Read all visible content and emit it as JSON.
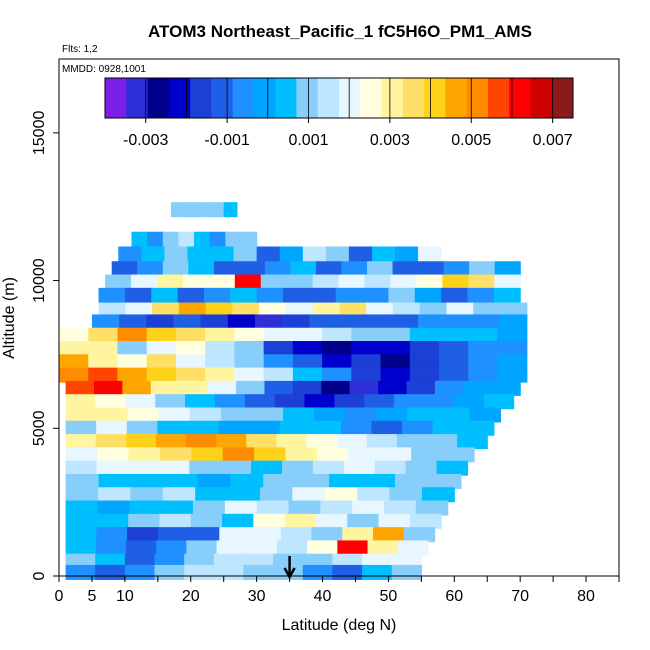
{
  "chart_data": {
    "type": "heatmap",
    "title": "ATOM3 Northeast_Pacific_1 fC5H6O_PM1_AMS",
    "flights_text": "Flts: 1,2",
    "mmdd_text": "MMDD: 0928,1001",
    "xlabel": "Latitude (deg N)",
    "ylabel": "Altitude (m)",
    "xlim": [
      0,
      85
    ],
    "ylim": [
      0,
      17500
    ],
    "x_ticks": [
      0,
      5,
      10,
      20,
      30,
      40,
      50,
      60,
      70,
      80
    ],
    "x_minor_ticks": [
      15,
      25,
      35,
      45,
      55,
      65,
      75,
      85
    ],
    "y_ticks": [
      0,
      5000,
      10000,
      15000
    ],
    "marker_latitude": 35,
    "colorbar": {
      "ticks": [
        "-0.003",
        "-0.001",
        "0.001",
        "0.003",
        "0.005",
        "0.007"
      ],
      "tick_values": [
        -0.003,
        -0.001,
        0.001,
        0.003,
        0.005,
        0.007
      ],
      "range": [
        -0.004,
        0.0075
      ],
      "colors": [
        "#7b1fe6",
        "#2f2fd8",
        "#00008b",
        "#0000cd",
        "#1c3fd6",
        "#1e5fe6",
        "#1e90ff",
        "#00a5ff",
        "#00bfff",
        "#87cefa",
        "#bfe6ff",
        "#e8f6ff",
        "#ffffe0",
        "#fff5a0",
        "#ffe066",
        "#ffd21a",
        "#ffa500",
        "#ff8c00",
        "#ff4500",
        "#ff0000",
        "#cd0000",
        "#8b1a1a"
      ]
    },
    "bands": [
      {
        "alt": 12400,
        "x0": 17,
        "x1": 27,
        "values": [
          0.0008,
          0.0012,
          0.0009,
          0.0011,
          0.0007
        ]
      },
      {
        "alt": 11400,
        "x0": 11,
        "x1": 30,
        "values": [
          0.0002,
          -0.0008,
          0.001,
          0.0015,
          0.0006,
          -0.0005,
          0.0012,
          0.0009
        ]
      },
      {
        "alt": 10900,
        "x0": 9,
        "x1": 58,
        "values": [
          -0.0006,
          0.0003,
          0.0012,
          0.0005,
          0.0004,
          0.0011,
          -0.0009,
          -0.0002,
          0.0013,
          0.0008,
          -0.0011,
          0.0006,
          -0.0003,
          0.002
        ]
      },
      {
        "alt": 10400,
        "x0": 8,
        "x1": 70,
        "values": [
          -0.0012,
          -0.0004,
          0.0009,
          0.0003,
          -0.0009,
          -0.0011,
          -0.0007,
          0.0005,
          -0.0012,
          -0.0006,
          0.0008,
          -0.0013,
          -0.0009,
          -0.0004,
          0.0011,
          -0.0002
        ]
      },
      {
        "alt": 9950,
        "x0": 7,
        "x1": 70,
        "values": [
          0.0011,
          0.0018,
          0.0032,
          0.0026,
          0.0023,
          0.0062,
          0.0012,
          0.0009,
          0.0016,
          0.0021,
          0.0013,
          0.0019,
          0.0027,
          0.0041,
          0.0034,
          0.0021
        ]
      },
      {
        "alt": 9500,
        "x0": 6,
        "x1": 70,
        "values": [
          -0.0006,
          -0.0009,
          0.0006,
          -0.0012,
          -0.0008,
          0.0004,
          -0.0007,
          -0.0011,
          -0.0009,
          -0.0006,
          -0.0004,
          0.0008,
          -0.0003,
          -0.001,
          -0.0006,
          0.0002
        ]
      },
      {
        "alt": 9000,
        "x0": 6,
        "x1": 71,
        "values": [
          0.0014,
          0.002,
          0.0035,
          0.0044,
          0.0041,
          0.0037,
          0.0026,
          0.0018,
          0.0028,
          0.0038,
          0.0022,
          0.0015,
          0.0011,
          0.0019,
          0.0012,
          0.0009
        ]
      },
      {
        "alt": 8600,
        "x0": 5,
        "x1": 71,
        "values": [
          -0.0004,
          -0.0009,
          -0.0015,
          -0.001,
          -0.0014,
          -0.0021,
          -0.003,
          -0.0018,
          -0.0012,
          -0.0009,
          -0.0013,
          -0.0011,
          -0.0008,
          -0.0006,
          -0.0004,
          -0.0002
        ]
      },
      {
        "alt": 8150,
        "x0": 0,
        "x1": 71,
        "values": [
          0.0024,
          0.0038,
          0.0052,
          0.0041,
          0.0036,
          0.0031,
          0.0026,
          0.0019,
          0.0022,
          0.0014,
          0.0009,
          0.0012,
          0.0006,
          0.0004,
          0.0002,
          0.0001
        ]
      },
      {
        "alt": 7700,
        "x0": 0,
        "x1": 71,
        "values": [
          0.0031,
          0.0029,
          0.0012,
          0.0019,
          0.0023,
          0.0017,
          0.0008,
          -0.0014,
          -0.0023,
          -0.0029,
          -0.002,
          -0.0024,
          -0.0016,
          -0.0012,
          -0.0008,
          -0.0004
        ]
      },
      {
        "alt": 7250,
        "x0": 0,
        "x1": 71,
        "values": [
          0.0046,
          0.0033,
          0.0025,
          0.0036,
          0.0021,
          0.0016,
          0.0009,
          -0.0004,
          -0.0012,
          -0.0021,
          -0.0018,
          -0.0025,
          -0.0016,
          -0.0011,
          -0.0006,
          -0.0003
        ]
      },
      {
        "alt": 6800,
        "x0": 0,
        "x1": 71,
        "values": [
          0.0051,
          0.0056,
          0.0047,
          0.0042,
          0.0038,
          0.0031,
          0.0022,
          0.0015,
          0.0004,
          -0.0008,
          -0.0016,
          -0.0022,
          -0.0014,
          -0.0009,
          -0.0004,
          -0.0001
        ]
      },
      {
        "alt": 6350,
        "x0": 1,
        "x1": 70,
        "values": [
          0.0055,
          0.0061,
          0.0048,
          0.0033,
          0.0028,
          0.0019,
          0.0011,
          -0.0009,
          -0.0018,
          -0.0027,
          -0.0032,
          -0.0021,
          -0.0014,
          -0.0008,
          -0.0003,
          0.0001
        ]
      },
      {
        "alt": 5900,
        "x0": 1,
        "x1": 69,
        "values": [
          0.0031,
          0.0026,
          0.0019,
          0.0012,
          0.0005,
          -0.0004,
          -0.0011,
          -0.0017,
          -0.0024,
          -0.0019,
          -0.0013,
          -0.0008,
          -0.0004,
          0.0001,
          0.0003
        ]
      },
      {
        "alt": 5450,
        "x0": 1,
        "x1": 67,
        "values": [
          0.0028,
          0.0033,
          0.0026,
          0.0021,
          0.0015,
          0.0012,
          0.0008,
          0.0003,
          -0.0002,
          -0.0007,
          -0.0003,
          0.0002,
          0.0005,
          0.0001
        ]
      },
      {
        "alt": 5000,
        "x0": 1,
        "x1": 66,
        "values": [
          0.0012,
          0.0018,
          0.0009,
          0.0005,
          0.0002,
          -0.0003,
          0.0001,
          0.0006,
          0.0004,
          -0.0005,
          -0.0009,
          -0.0004,
          0.0002,
          0.0005
        ]
      },
      {
        "alt": 4550,
        "x0": 1,
        "x1": 65,
        "values": [
          0.0029,
          0.0035,
          0.0042,
          0.0048,
          0.0051,
          0.0046,
          0.0038,
          0.0031,
          0.0025,
          0.0019,
          0.0016,
          0.0011,
          0.0008,
          0.0004
        ]
      },
      {
        "alt": 4100,
        "x0": 1,
        "x1": 63,
        "values": [
          0.0021,
          0.0027,
          0.0031,
          0.0036,
          0.0043,
          0.0052,
          0.0041,
          0.0033,
          0.0027,
          0.0022,
          0.0018,
          0.0012,
          0.0008
        ]
      },
      {
        "alt": 3650,
        "x0": 1,
        "x1": 62,
        "values": [
          0.0015,
          0.0019,
          0.0022,
          0.0018,
          0.0011,
          0.0009,
          0.0006,
          0.0012,
          0.0016,
          0.0019,
          0.0013,
          0.0008,
          0.0004
        ]
      },
      {
        "alt": 3200,
        "x0": 1,
        "x1": 61,
        "values": [
          0.0011,
          0.0007,
          0.0004,
          0.0002,
          -0.0003,
          0.0005,
          0.0009,
          0.0012,
          0.0006,
          0.0003,
          0.0008,
          0.0011
        ]
      },
      {
        "alt": 2750,
        "x0": 1,
        "x1": 60,
        "values": [
          0.0009,
          0.0013,
          0.0008,
          0.0015,
          0.0006,
          0.0003,
          0.0011,
          0.0018,
          0.0024,
          0.0016,
          0.0012,
          0.0007
        ]
      },
      {
        "alt": 2300,
        "x0": 1,
        "x1": 59,
        "values": [
          0.0004,
          -0.0003,
          0.0002,
          0.0007,
          0.0012,
          0.0019,
          0.0013,
          0.0009,
          0.0016,
          0.0021,
          0.0015,
          0.0011
        ]
      },
      {
        "alt": 1850,
        "x0": 1,
        "x1": 58,
        "values": [
          0.0007,
          0.0005,
          0.0011,
          0.0016,
          0.0009,
          0.0004,
          0.0027,
          0.0031,
          0.0018,
          0.0012,
          0.0022,
          0.0014
        ]
      },
      {
        "alt": 1400,
        "x0": 1,
        "x1": 57,
        "values": [
          0.0002,
          -0.0008,
          -0.0016,
          -0.0009,
          -0.0013,
          0.0018,
          0.0021,
          0.0015,
          0.0009,
          0.0032,
          0.0044,
          0.0012
        ]
      },
      {
        "alt": 950,
        "x0": 1,
        "x1": 56,
        "values": [
          0.0004,
          -0.0006,
          -0.0011,
          -0.0004,
          0.0012,
          0.0021,
          0.0019,
          0.0014,
          0.0023,
          0.0064,
          0.0031,
          0.0018
        ]
      },
      {
        "alt": 500,
        "x0": 1,
        "x1": 55,
        "values": [
          0.0012,
          0.0006,
          -0.0009,
          -0.0004,
          0.0009,
          0.0015,
          0.0017,
          0.0011,
          0.0008,
          0.0014,
          0.0019,
          0.0021
        ]
      },
      {
        "alt": 120,
        "x0": 1,
        "x1": 55,
        "values": [
          -0.0007,
          -0.0012,
          -0.0005,
          0.0008,
          0.0014,
          0.0016,
          0.0012,
          0.0009,
          -0.0006,
          -0.0009,
          0.0004,
          0.0009
        ]
      }
    ]
  }
}
